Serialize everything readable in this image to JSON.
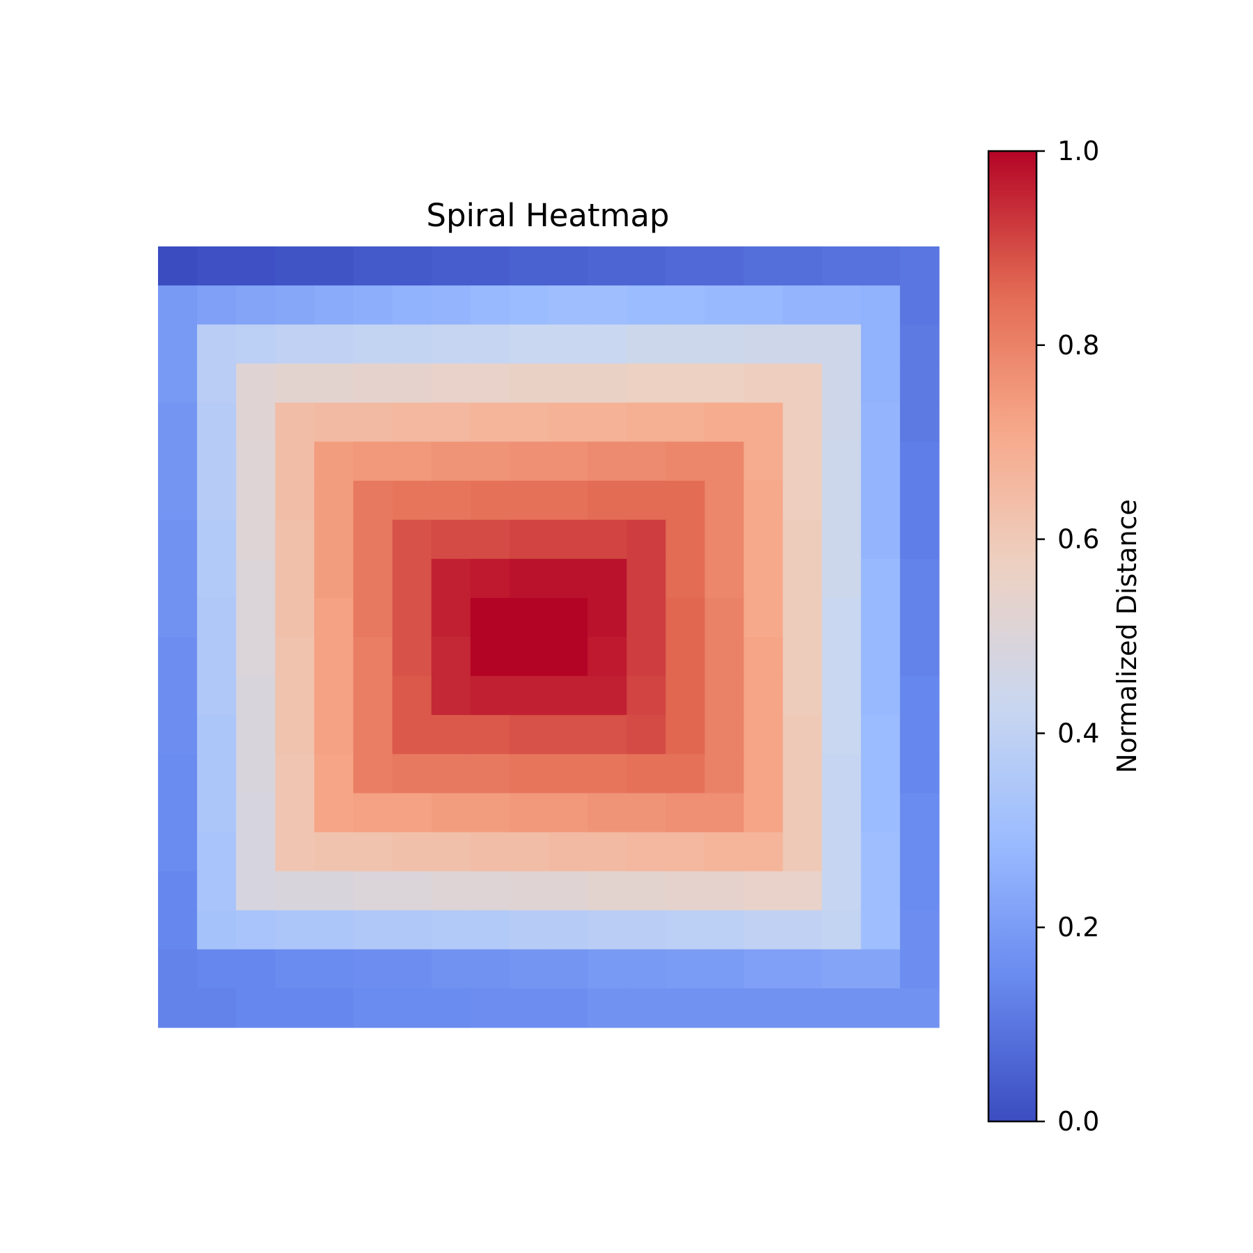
{
  "chart_data": {
    "type": "heatmap",
    "title": "Spiral Heatmap",
    "xlabel": "",
    "ylabel": "",
    "colormap": "coolwarm",
    "colormap_stops": [
      "#3b4cc0",
      "#6788ee",
      "#9abbff",
      "#c9d7f0",
      "#edd1c2",
      "#f7a889",
      "#e26952",
      "#b40426"
    ],
    "rows": 20,
    "cols": 20,
    "values": [
      [
        0.0,
        0.01,
        0.01,
        0.02,
        0.02,
        0.03,
        0.03,
        0.04,
        0.04,
        0.05,
        0.05,
        0.06,
        0.06,
        0.07,
        0.07,
        0.08,
        0.08,
        0.09,
        0.09,
        0.1
      ],
      [
        0.19,
        0.21,
        0.22,
        0.23,
        0.24,
        0.25,
        0.26,
        0.27,
        0.28,
        0.29,
        0.3,
        0.3,
        0.29,
        0.29,
        0.28,
        0.28,
        0.27,
        0.27,
        0.26,
        0.1
      ],
      [
        0.19,
        0.38,
        0.39,
        0.4,
        0.4,
        0.41,
        0.41,
        0.42,
        0.42,
        0.43,
        0.43,
        0.43,
        0.44,
        0.44,
        0.44,
        0.45,
        0.45,
        0.45,
        0.26,
        0.11
      ],
      [
        0.19,
        0.38,
        0.52,
        0.53,
        0.53,
        0.54,
        0.54,
        0.55,
        0.55,
        0.56,
        0.56,
        0.56,
        0.57,
        0.57,
        0.57,
        0.58,
        0.58,
        0.45,
        0.26,
        0.11
      ],
      [
        0.18,
        0.37,
        0.52,
        0.64,
        0.65,
        0.65,
        0.66,
        0.66,
        0.67,
        0.67,
        0.68,
        0.68,
        0.69,
        0.69,
        0.7,
        0.7,
        0.58,
        0.45,
        0.27,
        0.11
      ],
      [
        0.18,
        0.37,
        0.51,
        0.64,
        0.74,
        0.75,
        0.75,
        0.76,
        0.76,
        0.77,
        0.77,
        0.78,
        0.78,
        0.79,
        0.79,
        0.7,
        0.58,
        0.44,
        0.27,
        0.12
      ],
      [
        0.18,
        0.37,
        0.51,
        0.64,
        0.74,
        0.82,
        0.83,
        0.83,
        0.84,
        0.84,
        0.84,
        0.85,
        0.85,
        0.85,
        0.79,
        0.71,
        0.58,
        0.44,
        0.27,
        0.12
      ],
      [
        0.17,
        0.36,
        0.51,
        0.63,
        0.74,
        0.82,
        0.89,
        0.9,
        0.9,
        0.91,
        0.91,
        0.91,
        0.92,
        0.85,
        0.79,
        0.71,
        0.59,
        0.44,
        0.27,
        0.12
      ],
      [
        0.17,
        0.36,
        0.5,
        0.63,
        0.74,
        0.82,
        0.89,
        0.96,
        0.97,
        0.98,
        0.98,
        0.98,
        0.92,
        0.85,
        0.79,
        0.71,
        0.59,
        0.44,
        0.28,
        0.13
      ],
      [
        0.17,
        0.35,
        0.5,
        0.63,
        0.73,
        0.82,
        0.89,
        0.96,
        1.0,
        1.0,
        1.0,
        0.98,
        0.92,
        0.86,
        0.8,
        0.71,
        0.59,
        0.43,
        0.28,
        0.13
      ],
      [
        0.16,
        0.35,
        0.5,
        0.62,
        0.73,
        0.81,
        0.89,
        0.95,
        1.0,
        1.0,
        1.0,
        0.97,
        0.92,
        0.86,
        0.8,
        0.72,
        0.59,
        0.43,
        0.28,
        0.13
      ],
      [
        0.16,
        0.35,
        0.49,
        0.62,
        0.73,
        0.81,
        0.88,
        0.95,
        0.96,
        0.96,
        0.96,
        0.96,
        0.91,
        0.86,
        0.8,
        0.72,
        0.59,
        0.43,
        0.28,
        0.14
      ],
      [
        0.16,
        0.34,
        0.49,
        0.62,
        0.73,
        0.81,
        0.88,
        0.88,
        0.88,
        0.89,
        0.89,
        0.89,
        0.9,
        0.86,
        0.8,
        0.72,
        0.6,
        0.43,
        0.29,
        0.14
      ],
      [
        0.15,
        0.34,
        0.49,
        0.61,
        0.72,
        0.81,
        0.82,
        0.82,
        0.82,
        0.83,
        0.83,
        0.83,
        0.84,
        0.84,
        0.8,
        0.72,
        0.6,
        0.42,
        0.29,
        0.14
      ],
      [
        0.15,
        0.34,
        0.48,
        0.61,
        0.72,
        0.73,
        0.73,
        0.74,
        0.74,
        0.75,
        0.75,
        0.76,
        0.76,
        0.77,
        0.77,
        0.72,
        0.6,
        0.42,
        0.29,
        0.15
      ],
      [
        0.15,
        0.33,
        0.48,
        0.61,
        0.62,
        0.62,
        0.63,
        0.63,
        0.64,
        0.64,
        0.65,
        0.65,
        0.66,
        0.66,
        0.67,
        0.67,
        0.6,
        0.42,
        0.3,
        0.15
      ],
      [
        0.14,
        0.33,
        0.48,
        0.49,
        0.49,
        0.5,
        0.5,
        0.51,
        0.51,
        0.52,
        0.52,
        0.53,
        0.53,
        0.54,
        0.54,
        0.55,
        0.55,
        0.42,
        0.3,
        0.15
      ],
      [
        0.14,
        0.32,
        0.33,
        0.34,
        0.34,
        0.35,
        0.35,
        0.36,
        0.36,
        0.37,
        0.37,
        0.38,
        0.38,
        0.39,
        0.39,
        0.4,
        0.4,
        0.41,
        0.3,
        0.16
      ],
      [
        0.13,
        0.14,
        0.14,
        0.15,
        0.15,
        0.16,
        0.16,
        0.17,
        0.17,
        0.18,
        0.18,
        0.19,
        0.19,
        0.2,
        0.2,
        0.21,
        0.21,
        0.22,
        0.22,
        0.16
      ],
      [
        0.13,
        0.13,
        0.14,
        0.14,
        0.14,
        0.15,
        0.15,
        0.15,
        0.16,
        0.16,
        0.16,
        0.17,
        0.17,
        0.17,
        0.17,
        0.17,
        0.17,
        0.17,
        0.17,
        0.17
      ]
    ],
    "colorbar": {
      "label": "Normalized Distance",
      "range": [
        0.0,
        1.0
      ],
      "ticks": [
        0.0,
        0.2,
        0.4,
        0.6,
        0.8,
        1.0
      ],
      "tick_labels": [
        "0.0",
        "0.2",
        "0.4",
        "0.6",
        "0.8",
        "1.0"
      ]
    },
    "grid": false,
    "axes_visible": false
  }
}
